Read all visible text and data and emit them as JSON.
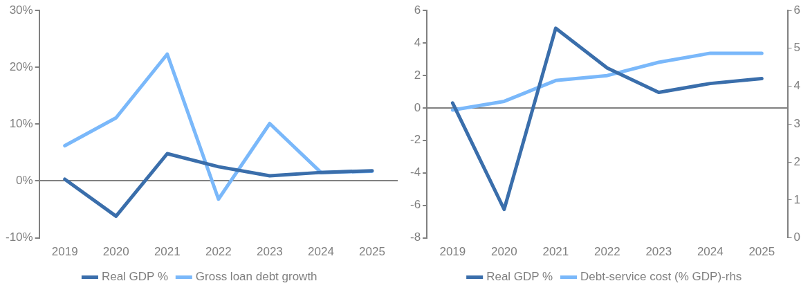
{
  "chart_data": [
    {
      "type": "line",
      "categories": [
        "2019",
        "2020",
        "2021",
        "2022",
        "2023",
        "2024",
        "2025"
      ],
      "series": [
        {
          "name": "Real GDP %",
          "color": "#3a6eab",
          "values": [
            0.3,
            -6.2,
            4.8,
            2.5,
            0.9,
            1.5,
            1.8
          ]
        },
        {
          "name": "Gross loan debt growth",
          "color": "#7ab8fa",
          "values": [
            6.2,
            11.1,
            22.3,
            -3.2,
            10.1,
            1.5,
            1.7
          ]
        }
      ],
      "ylim": [
        -10,
        30
      ],
      "yticks": [
        {
          "value": -10,
          "label": "-10%"
        },
        {
          "value": 0,
          "label": "0%"
        },
        {
          "value": 10,
          "label": "10%"
        },
        {
          "value": 20,
          "label": "20%"
        },
        {
          "value": 30,
          "label": "30%"
        }
      ],
      "legend": "bottom",
      "marker": "none",
      "line_style": "solid"
    },
    {
      "type": "line",
      "categories": [
        "2019",
        "2020",
        "2021",
        "2022",
        "2023",
        "2024",
        "2025"
      ],
      "series": [
        {
          "name": "Real GDP %",
          "color": "#3a6eab",
          "values": [
            0.3,
            -6.25,
            4.9,
            2.45,
            0.95,
            1.5,
            1.8
          ]
        },
        {
          "name": "Debt-service cost (% GDP)-rhs",
          "color": "#7ab8fa",
          "axis": "y2",
          "values": [
            3.37,
            3.6,
            4.15,
            4.28,
            4.63,
            4.87,
            4.87
          ]
        }
      ],
      "ylim": [
        -8,
        6
      ],
      "yticks": [
        -8,
        -6,
        -4,
        -2,
        0,
        2,
        4,
        6
      ],
      "y2lim": [
        0,
        6
      ],
      "y2ticks": [
        0,
        1,
        2,
        3,
        4,
        5,
        6
      ],
      "legend": "bottom",
      "marker": "none",
      "line_style": "solid"
    }
  ]
}
